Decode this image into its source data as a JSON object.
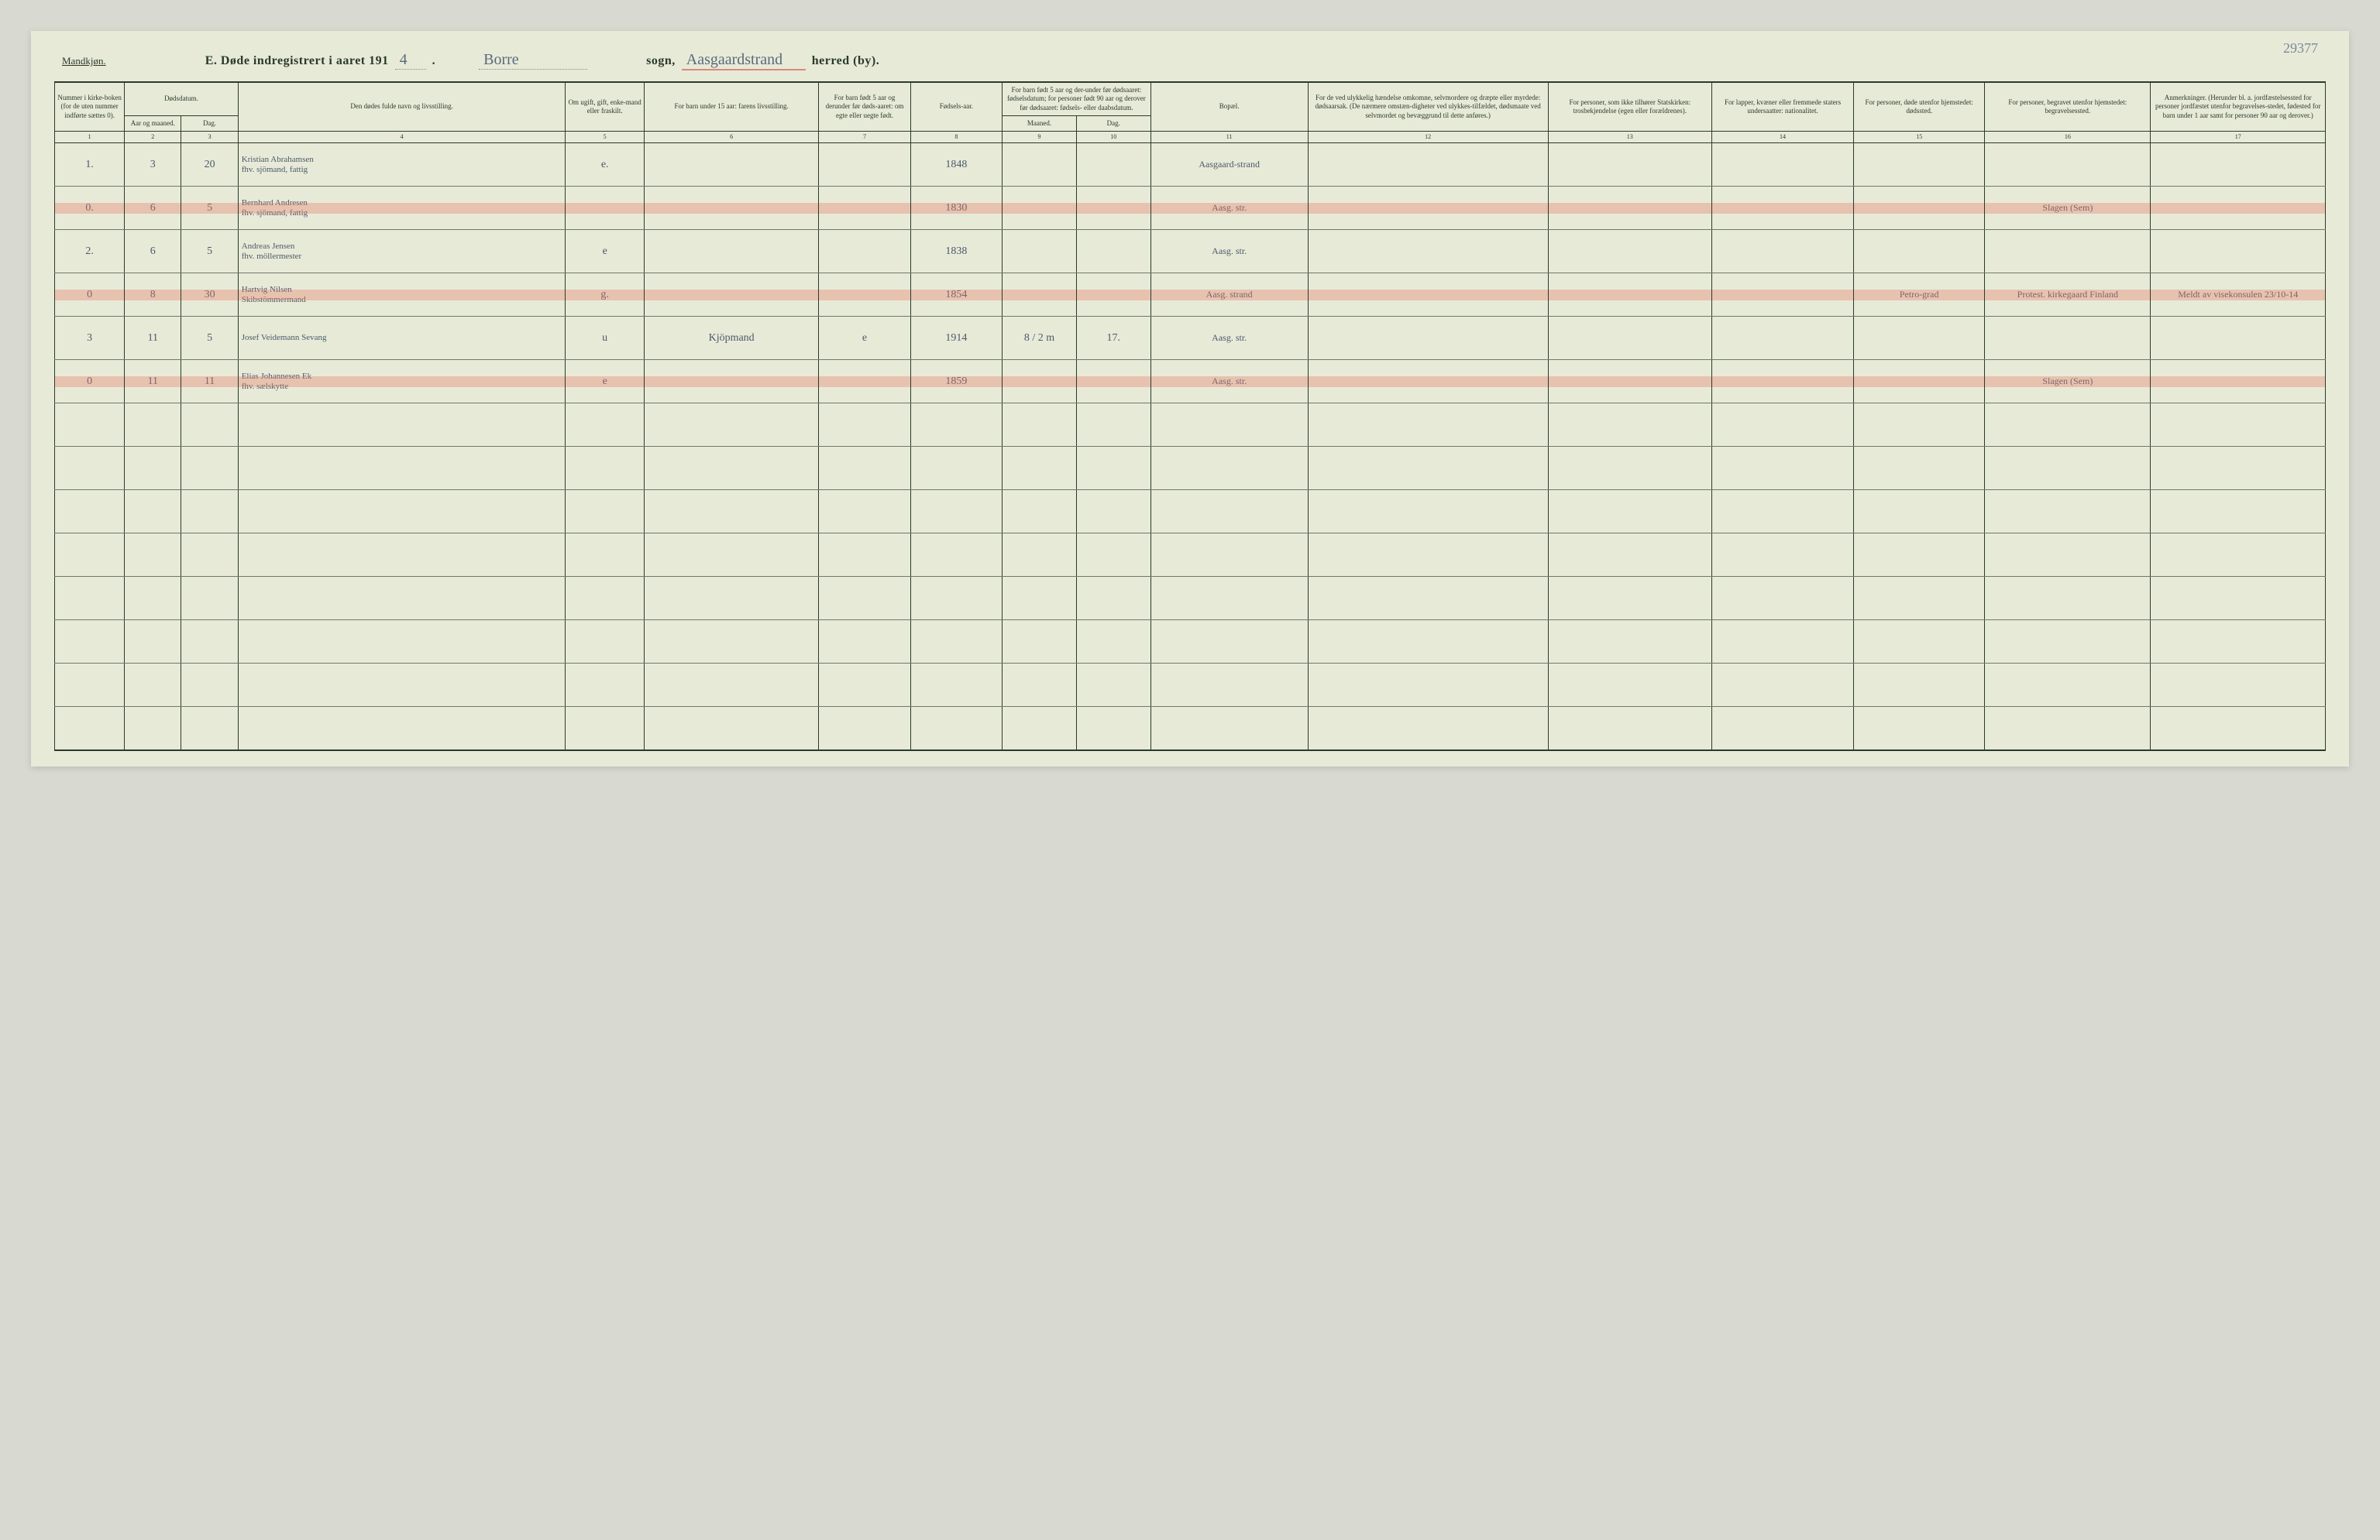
{
  "page_number_note": "29377",
  "header": {
    "gender_label": "Mandkjøn.",
    "title_prefix": "E.  Døde indregistrert i aaret 191",
    "year_suffix": "4",
    "title_period": ".",
    "sogn_hand": "Borre",
    "sogn_label": "sogn,",
    "herred_hand": "Aasgaardstrand",
    "herred_label": "herred (by)."
  },
  "columns": {
    "c1": "Nummer i kirke-boken (for de uten nummer indførte sættes 0).",
    "c2_group": "Dødsdatum.",
    "c2a": "Aar og maaned.",
    "c2b": "Dag.",
    "c3": "Den dødes fulde navn og livsstilling.",
    "c4": "Om ugift, gift, enke-mand eller fraskilt.",
    "c5": "For barn under 15 aar: farens livsstilling.",
    "c6": "For barn født 5 aar og derunder før døds-aaret: om egte eller uegte født.",
    "c7": "Fødsels-aar.",
    "c8_group": "For barn født 5 aar og der-under før dødsaaret: fødselsdatum; for personer født 90 aar og derover før dødsaaret: fødsels- eller daabsdatum.",
    "c8a": "Maaned.",
    "c8b": "Dag.",
    "c9": "Bopæl.",
    "c10": "For de ved ulykkelig hændelse omkomne, selvmordere og dræpte eller myrdede: dødsaarsak. (De nærmere omstæn-digheter ved ulykkes-tilfældet, dødsmaate ved selvmordet og bevæggrund til dette anføres.)",
    "c11": "For personer, som ikke tilhører Statskirken: trosbekjendelse (egen eller forældrenes).",
    "c12": "For lapper, kvæner eller fremmede staters undersaatter: nationalitet.",
    "c13": "For personer, døde utenfor hjemstedet: dødssted.",
    "c14": "For personer, begravet utenfor hjemstedet: begravelsessted.",
    "c15": "Anmerkninger. (Herunder bl. a. jordfæstelsessted for personer jordfæstet utenfor begravelses-stedet, fødested for barn under 1 aar samt for personer 90 aar og derover.)"
  },
  "colnums": [
    "1",
    "2",
    "3",
    "4",
    "5",
    "6",
    "7",
    "8",
    "9",
    "10",
    "11",
    "12",
    "13",
    "14",
    "15",
    "16",
    "17"
  ],
  "rows": [
    {
      "num": "1.",
      "mnd": "3",
      "dag": "20",
      "name": "Kristian Abrahamsen",
      "name2": "fhv. sjömand, fattig",
      "stand": "e.",
      "faren": "",
      "egte": "",
      "faar": "1848",
      "fm": "",
      "fd": "",
      "bopael": "Aasgaard-strand",
      "aarsak": "",
      "tros": "",
      "nat": "",
      "dsted": "",
      "bsted": "",
      "anm": "",
      "highlight": false
    },
    {
      "num": "0.",
      "mnd": "6",
      "dag": "5",
      "name": "Bernhard Andresen",
      "name2": "fhv. sjömand, fattig",
      "stand": "",
      "faren": "",
      "egte": "",
      "faar": "1830",
      "fm": "",
      "fd": "",
      "bopael": "Aasg. str.",
      "aarsak": "",
      "tros": "",
      "nat": "",
      "dsted": "",
      "bsted": "Slagen (Sem)",
      "anm": "",
      "highlight": true
    },
    {
      "num": "2.",
      "mnd": "6",
      "dag": "5",
      "name": "Andreas Jensen",
      "name2": "fhv. möllermester",
      "stand": "e",
      "faren": "",
      "egte": "",
      "faar": "1838",
      "fm": "",
      "fd": "",
      "bopael": "Aasg. str.",
      "aarsak": "",
      "tros": "",
      "nat": "",
      "dsted": "",
      "bsted": "",
      "anm": "",
      "highlight": false
    },
    {
      "num": "0",
      "mnd": "8",
      "dag": "30",
      "name": "Hartvig Nilsen",
      "name2": "Skibstömmermand",
      "stand": "g.",
      "faren": "",
      "egte": "",
      "faar": "1854",
      "fm": "",
      "fd": "",
      "bopael": "Aasg. strand",
      "aarsak": "",
      "tros": "",
      "nat": "",
      "dsted": "Petro-grad",
      "bsted": "Protest. kirkegaard Finland",
      "anm": "Meldt av visekonsulen 23/10-14",
      "highlight": true
    },
    {
      "num": "3",
      "mnd": "11",
      "dag": "5",
      "name": "Josef Veidemann Sevang",
      "name2": "",
      "stand": "u",
      "faren": "Kjöpmand",
      "egte": "e",
      "faar": "1914",
      "fm": "8 / 2 m",
      "fd": "17.",
      "bopael": "Aasg. str.",
      "aarsak": "",
      "tros": "",
      "nat": "",
      "dsted": "",
      "bsted": "",
      "anm": "",
      "highlight": false
    },
    {
      "num": "0",
      "mnd": "11",
      "dag": "11",
      "name": "Elias Johannesen Ek",
      "name2": "fhv. sælskytte",
      "stand": "e",
      "faren": "",
      "egte": "",
      "faar": "1859",
      "fm": "",
      "fd": "",
      "bopael": "Aasg. str.",
      "aarsak": "",
      "tros": "",
      "nat": "",
      "dsted": "",
      "bsted": "Slagen (Sem)",
      "anm": "",
      "highlight": true
    },
    {
      "blank": true
    },
    {
      "blank": true
    },
    {
      "blank": true
    },
    {
      "blank": true
    },
    {
      "blank": true
    },
    {
      "blank": true
    },
    {
      "blank": true
    },
    {
      "blank": true
    }
  ],
  "col_widths_pct": [
    3.2,
    2.6,
    2.6,
    15.0,
    3.6,
    8.0,
    4.2,
    4.2,
    3.4,
    3.4,
    7.2,
    11.0,
    7.5,
    6.5,
    6.0,
    7.6,
    8.0
  ]
}
